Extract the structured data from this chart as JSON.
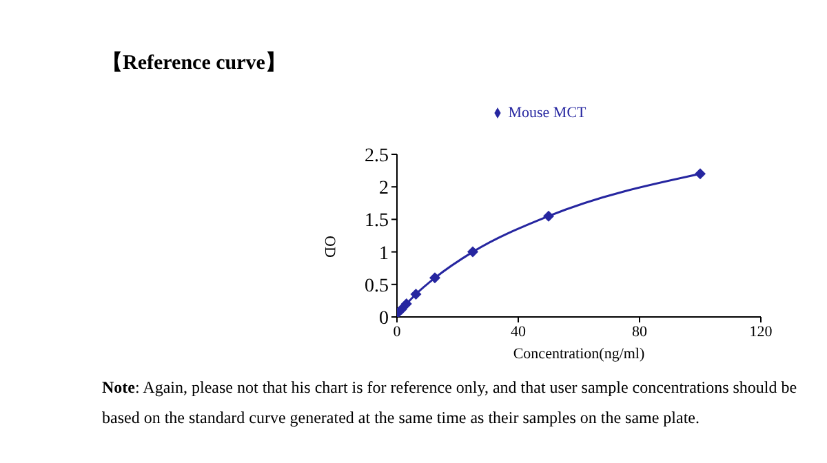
{
  "chart_data": {
    "type": "line",
    "title": "【Reference curve】",
    "xlabel": "Concentration(ng/ml)",
    "ylabel": "OD",
    "annotations": [
      "Note: Again, please not that his chart is for reference only, and that user sample concentrations should be based on the standard curve generated at the same time as their samples on the same plate."
    ],
    "series": [
      {
        "name": "Mouse MCT",
        "color": "#2626a0",
        "x": [
          0,
          1.56,
          3.125,
          6.25,
          12.5,
          25,
          50,
          100
        ],
        "values": [
          0.05,
          0.12,
          0.2,
          0.35,
          0.6,
          1.0,
          1.55,
          2.2
        ]
      }
    ],
    "xlim": [
      0,
      120
    ],
    "xticks": [
      0,
      40,
      80,
      120
    ],
    "ylim": [
      0,
      2.5
    ],
    "yticks": [
      0,
      0.5,
      1,
      1.5,
      2,
      2.5
    ],
    "grid": false,
    "legend": "top",
    "marker": "diamond",
    "line_style": "solid"
  }
}
